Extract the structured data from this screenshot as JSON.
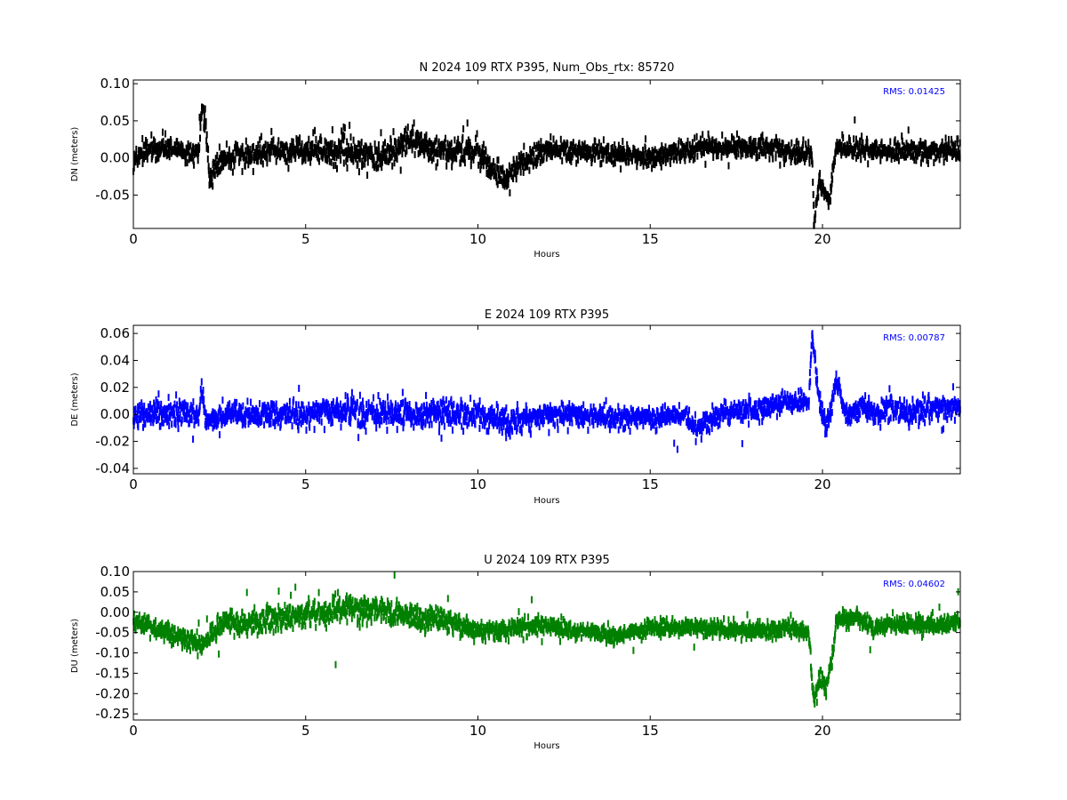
{
  "chart_data": [
    {
      "type": "scatter",
      "title": "N 2024 109 RTX  P395, Num_Obs_rtx: 85720",
      "xlabel": "Hours",
      "ylabel": "DN (meters)",
      "xlim": [
        0,
        24
      ],
      "ylim": [
        -0.095,
        0.105
      ],
      "xticks": [
        "0",
        "5",
        "10",
        "15",
        "20"
      ],
      "yticks": [
        "0.10",
        "0.05",
        "0.00",
        "-0.05"
      ],
      "annotation": "RMS:  0.01425",
      "annotation_color": "#0000ff",
      "color": "#000000",
      "grid": false,
      "trend": [
        [
          0,
          0.0
        ],
        [
          0.5,
          0.012
        ],
        [
          1,
          0.016
        ],
        [
          1.5,
          0.008
        ],
        [
          1.9,
          0.008
        ],
        [
          2.0,
          0.07
        ],
        [
          2.1,
          0.04
        ],
        [
          2.2,
          -0.025
        ],
        [
          2.5,
          -0.005
        ],
        [
          3,
          0.005
        ],
        [
          4,
          0.008
        ],
        [
          5,
          0.01
        ],
        [
          6,
          0.012
        ],
        [
          7,
          0.0
        ],
        [
          7.5,
          0.005
        ],
        [
          8,
          0.028
        ],
        [
          8.5,
          0.015
        ],
        [
          9,
          0.01
        ],
        [
          10,
          0.008
        ],
        [
          10.5,
          -0.02
        ],
        [
          10.8,
          -0.03
        ],
        [
          11.2,
          -0.01
        ],
        [
          12,
          0.01
        ],
        [
          13,
          0.008
        ],
        [
          14,
          0.006
        ],
        [
          15,
          0.0
        ],
        [
          16,
          0.01
        ],
        [
          17,
          0.015
        ],
        [
          18,
          0.015
        ],
        [
          19,
          0.01
        ],
        [
          19.7,
          0.005
        ],
        [
          19.75,
          -0.09
        ],
        [
          19.9,
          -0.03
        ],
        [
          20.2,
          -0.06
        ],
        [
          20.4,
          0.015
        ],
        [
          21,
          0.012
        ],
        [
          22,
          0.008
        ],
        [
          23,
          0.01
        ],
        [
          24,
          0.012
        ]
      ],
      "noise": [
        [
          0,
          0.012
        ],
        [
          10,
          0.018
        ],
        [
          12,
          0.012
        ],
        [
          24,
          0.012
        ]
      ],
      "n_points": 2600
    },
    {
      "type": "scatter",
      "title": "E 2024 109 RTX  P395",
      "xlabel": "Hours",
      "ylabel": "DE (meters)",
      "xlim": [
        0,
        24
      ],
      "ylim": [
        -0.044,
        0.066
      ],
      "xticks": [
        "0",
        "5",
        "10",
        "15",
        "20"
      ],
      "yticks": [
        "0.06",
        "0.04",
        "0.02",
        "0.00",
        "-0.02",
        "-0.04"
      ],
      "annotation": "RMS:  0.00787",
      "annotation_color": "#0000ff",
      "color": "#0000ff",
      "grid": false,
      "trend": [
        [
          0,
          0.0
        ],
        [
          1,
          0.002
        ],
        [
          1.9,
          0.0
        ],
        [
          2.0,
          0.022
        ],
        [
          2.1,
          -0.005
        ],
        [
          3,
          0.0
        ],
        [
          5,
          0.0
        ],
        [
          6,
          0.004
        ],
        [
          7,
          0.0
        ],
        [
          10,
          0.0
        ],
        [
          11,
          -0.006
        ],
        [
          12,
          0.0
        ],
        [
          14,
          -0.002
        ],
        [
          15,
          -0.003
        ],
        [
          16,
          0.0
        ],
        [
          16.3,
          -0.012
        ],
        [
          17,
          0.0
        ],
        [
          18,
          0.003
        ],
        [
          19,
          0.01
        ],
        [
          19.6,
          0.008
        ],
        [
          19.7,
          0.06
        ],
        [
          19.9,
          0.01
        ],
        [
          20.1,
          -0.012
        ],
        [
          20.4,
          0.024
        ],
        [
          20.7,
          0.0
        ],
        [
          21.2,
          0.006
        ],
        [
          21.6,
          0.0
        ],
        [
          22,
          0.008
        ],
        [
          22.5,
          0.0
        ],
        [
          23,
          0.005
        ],
        [
          24,
          0.003
        ]
      ],
      "noise": [
        [
          0,
          0.008
        ],
        [
          10,
          0.009
        ],
        [
          15,
          0.006
        ],
        [
          24,
          0.008
        ]
      ],
      "n_points": 2600
    },
    {
      "type": "scatter",
      "title": "U 2024 109 RTX  P395",
      "xlabel": "Hours",
      "ylabel": "DU (meters)",
      "xlim": [
        0,
        24
      ],
      "ylim": [
        -0.265,
        0.1
      ],
      "xticks": [
        "0",
        "5",
        "10",
        "15",
        "20"
      ],
      "yticks": [
        "0.10",
        "0.05",
        "0.00",
        "-0.05",
        "-0.10",
        "-0.15",
        "-0.20",
        "-0.25"
      ],
      "annotation": "RMS:  0.04602",
      "annotation_color": "#0000ff",
      "color": "#008000",
      "grid": false,
      "trend": [
        [
          0,
          -0.02
        ],
        [
          1,
          -0.05
        ],
        [
          2,
          -0.08
        ],
        [
          2.3,
          -0.05
        ],
        [
          2.7,
          -0.02
        ],
        [
          3,
          -0.03
        ],
        [
          4,
          -0.015
        ],
        [
          5,
          -0.005
        ],
        [
          6,
          0.01
        ],
        [
          7,
          0.005
        ],
        [
          8,
          -0.01
        ],
        [
          9,
          -0.02
        ],
        [
          10,
          -0.05
        ],
        [
          11,
          -0.04
        ],
        [
          12,
          -0.03
        ],
        [
          13,
          -0.05
        ],
        [
          14,
          -0.055
        ],
        [
          15,
          -0.04
        ],
        [
          16,
          -0.035
        ],
        [
          17,
          -0.04
        ],
        [
          18,
          -0.045
        ],
        [
          19,
          -0.04
        ],
        [
          19.6,
          -0.05
        ],
        [
          19.75,
          -0.22
        ],
        [
          19.9,
          -0.16
        ],
        [
          20.1,
          -0.19
        ],
        [
          20.3,
          -0.1
        ],
        [
          20.4,
          -0.02
        ],
        [
          21,
          -0.01
        ],
        [
          21.5,
          -0.04
        ],
        [
          22,
          -0.03
        ],
        [
          23,
          -0.03
        ],
        [
          24,
          -0.025
        ]
      ],
      "noise": [
        [
          0,
          0.018
        ],
        [
          6,
          0.03
        ],
        [
          9,
          0.022
        ],
        [
          12,
          0.018
        ],
        [
          24,
          0.018
        ]
      ],
      "n_points": 2600
    }
  ]
}
